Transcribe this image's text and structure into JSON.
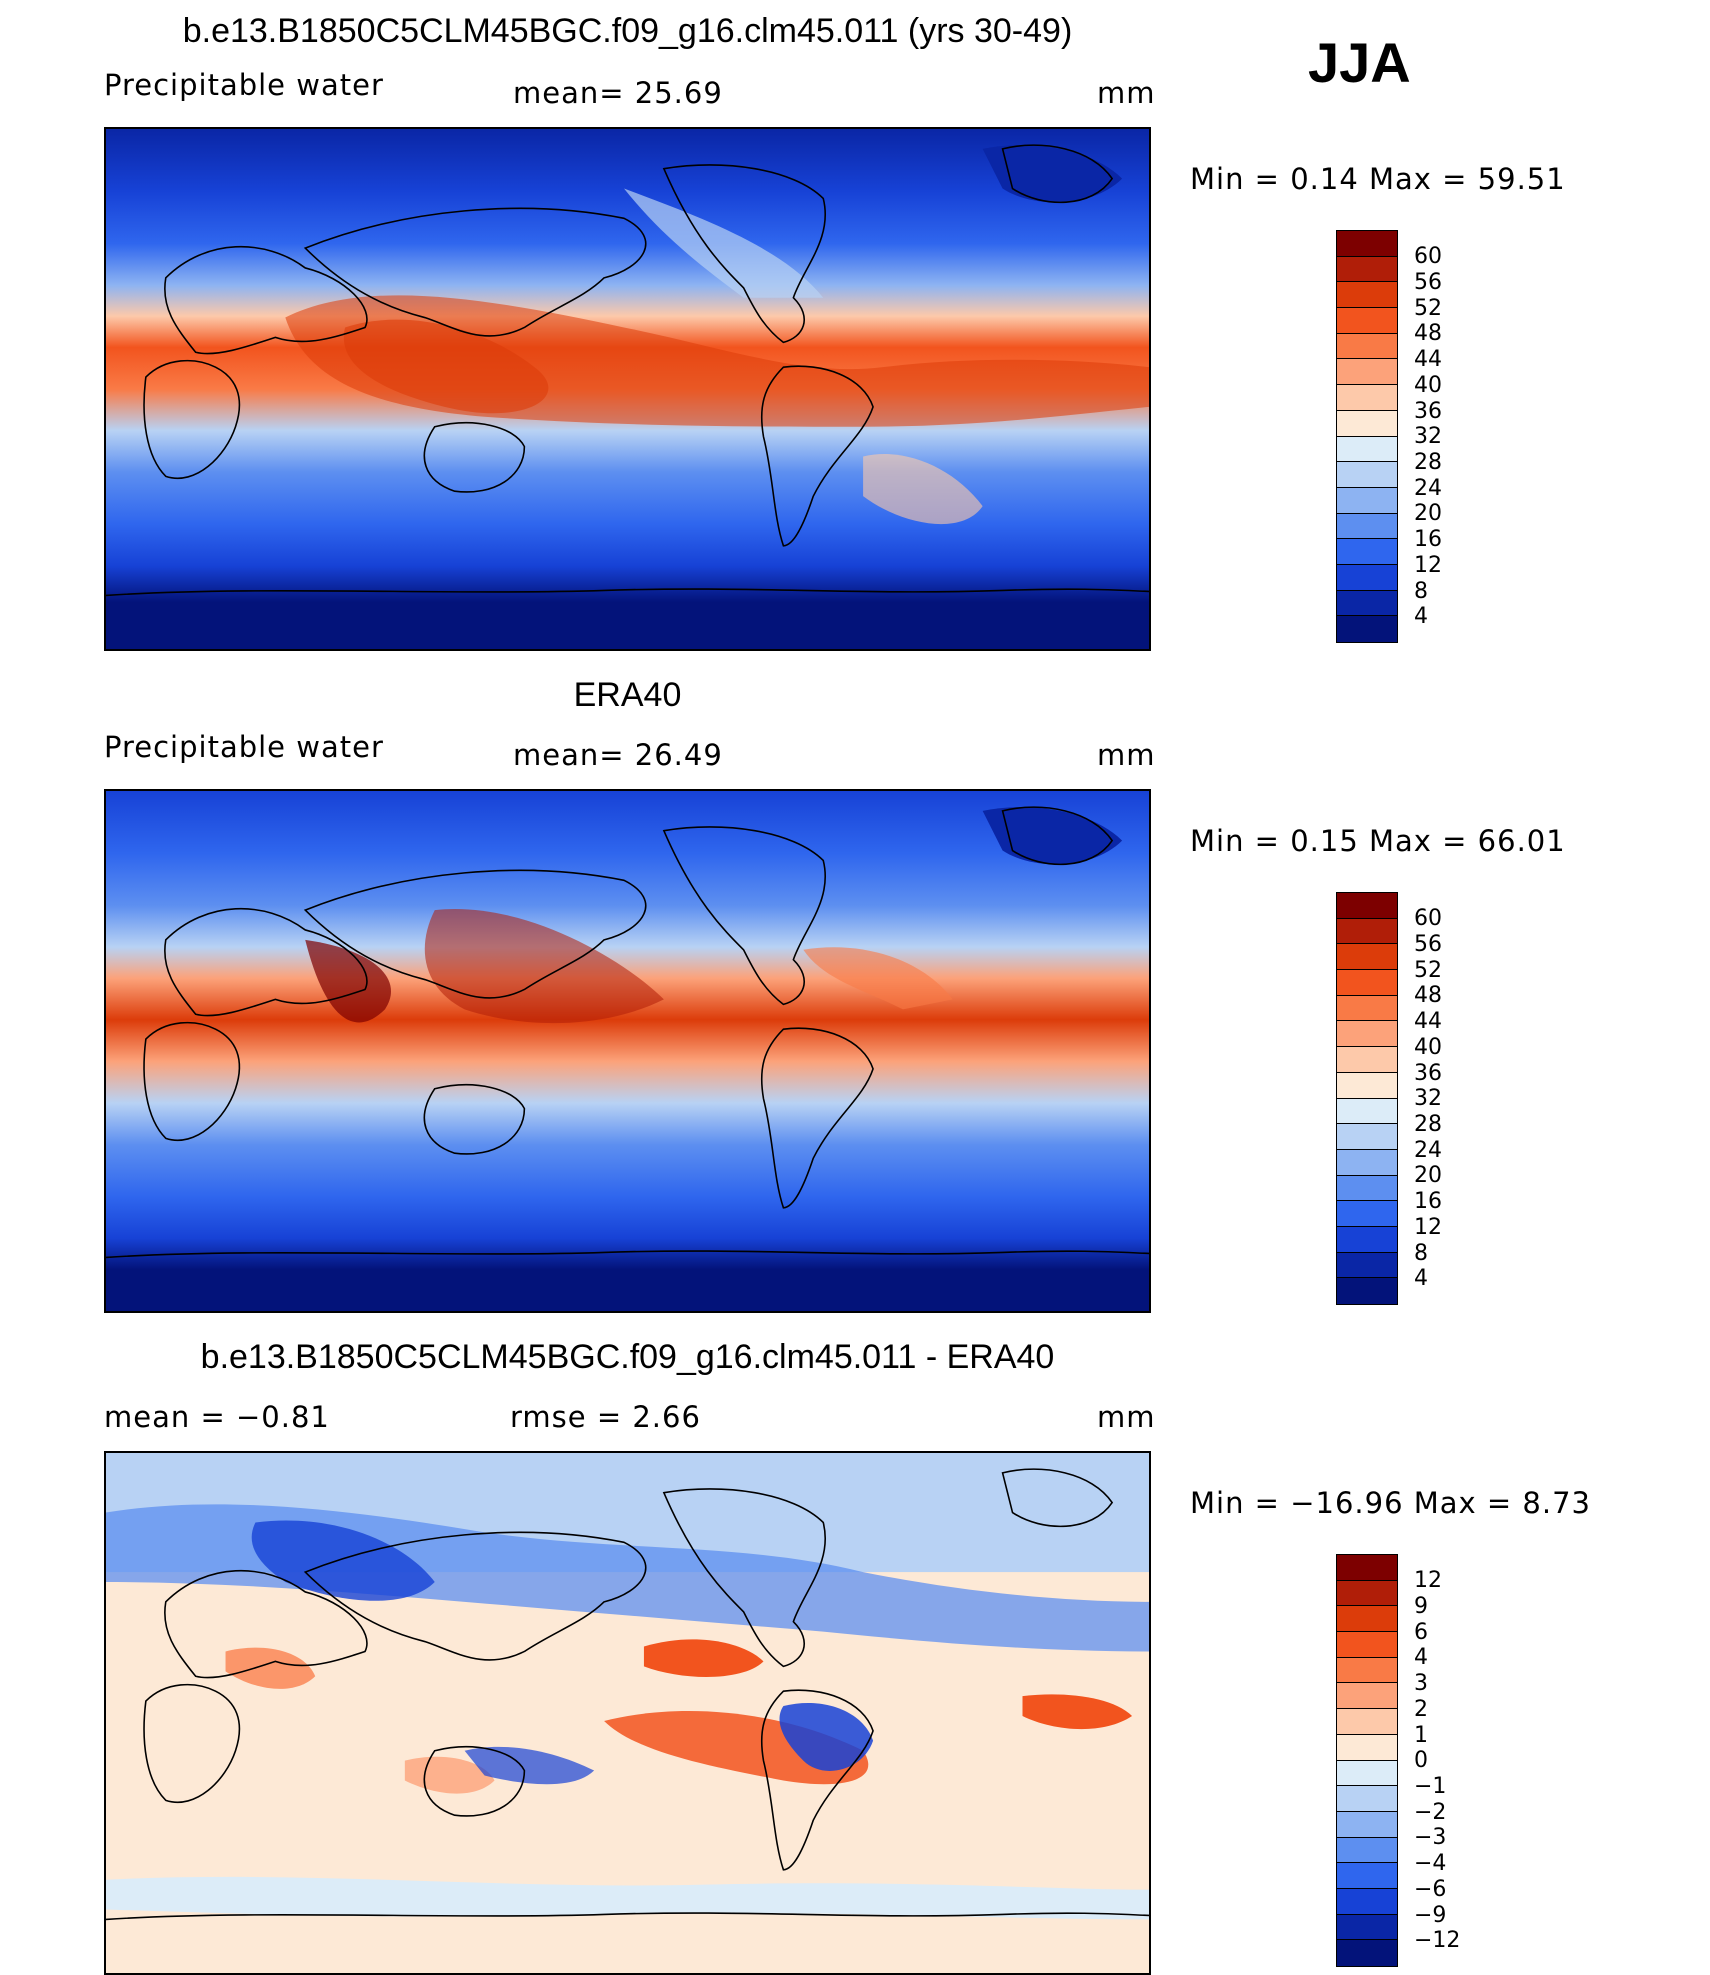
{
  "season": "JJA",
  "panels": [
    {
      "title": "b.e13.B1850C5CLM45BGC.f09_g16.clm45.011 (yrs 30-49)",
      "left_label": "Precipitable  water",
      "mid_label": "mean=   25.69",
      "units": "mm",
      "minmax": "Min  =     0.14  Max  =    59.51",
      "colorbar": {
        "labels": [
          "60",
          "56",
          "52",
          "48",
          "44",
          "40",
          "36",
          "32",
          "28",
          "24",
          "20",
          "16",
          "12",
          "8",
          "4"
        ],
        "colors": [
          "#7d0000",
          "#b01e08",
          "#dc3c0a",
          "#f2541e",
          "#f97a46",
          "#fca27a",
          "#fdc9aa",
          "#fde9d6",
          "#dcecf8",
          "#b8d2f4",
          "#8db3f2",
          "#5d8ff0",
          "#2f66ee",
          "#1742d6",
          "#0a26a6",
          "#03137a"
        ]
      },
      "map_type": "absolute"
    },
    {
      "title": "ERA40",
      "left_label": "Precipitable  water",
      "mid_label": "mean=   26.49",
      "units": "mm",
      "minmax": "Min  =     0.15  Max  =    66.01",
      "colorbar": {
        "labels": [
          "60",
          "56",
          "52",
          "48",
          "44",
          "40",
          "36",
          "32",
          "28",
          "24",
          "20",
          "16",
          "12",
          "8",
          "4"
        ],
        "colors": [
          "#7d0000",
          "#b01e08",
          "#dc3c0a",
          "#f2541e",
          "#f97a46",
          "#fca27a",
          "#fdc9aa",
          "#fde9d6",
          "#dcecf8",
          "#b8d2f4",
          "#8db3f2",
          "#5d8ff0",
          "#2f66ee",
          "#1742d6",
          "#0a26a6",
          "#03137a"
        ]
      },
      "map_type": "absolute"
    },
    {
      "title": "b.e13.B1850C5CLM45BGC.f09_g16.clm45.011 - ERA40",
      "left_label": "mean  =    −0.81",
      "mid_label": "rmse  =     2.66",
      "units": "mm",
      "minmax": "Min  = −16.96  Max  =     8.73",
      "colorbar": {
        "labels": [
          "12",
          "9",
          "6",
          "4",
          "3",
          "2",
          "1",
          "0",
          "−1",
          "−2",
          "−3",
          "−4",
          "−6",
          "−9",
          "−12"
        ],
        "colors": [
          "#7d0000",
          "#b01e08",
          "#dc3c0a",
          "#f2541e",
          "#f97a46",
          "#fca27a",
          "#fdc9aa",
          "#fde9d6",
          "#dcecf8",
          "#b8d2f4",
          "#8db3f2",
          "#5d8ff0",
          "#2f66ee",
          "#1742d6",
          "#0a26a6",
          "#03137a"
        ]
      },
      "map_type": "difference"
    }
  ]
}
